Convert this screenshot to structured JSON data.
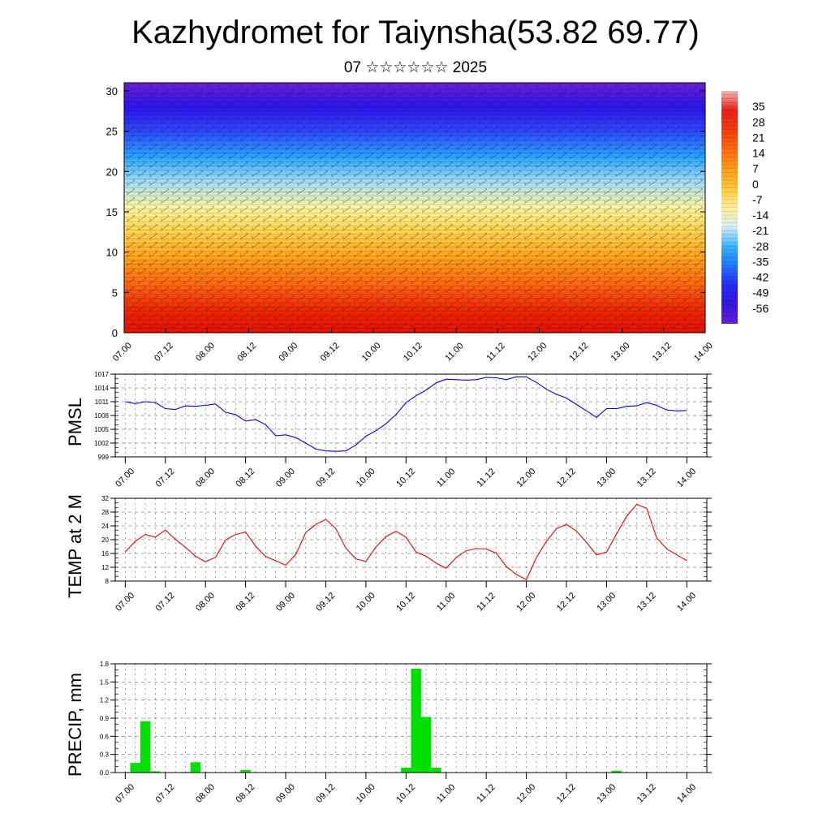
{
  "title": "Kazhydromet for Taiynsha(53.82 69.77)",
  "subtitle": "07 ☆☆☆☆☆☆ 2025",
  "x_tick_labels": [
    "07.00",
    "07.12",
    "08.00",
    "08.12",
    "09.00",
    "09.12",
    "10.00",
    "10.12",
    "11.00",
    "11.12",
    "12.00",
    "12.12",
    "13.00",
    "13.12",
    "14.00"
  ],
  "colors": {
    "pmsl_line": "#0000ee",
    "temp_line": "#ee0000",
    "precip_bar": "#00e000"
  },
  "chart_data": [
    {
      "type": "heatmap",
      "title": "",
      "ylabel": "",
      "xlabel": "",
      "x_range": [
        0,
        7
      ],
      "ylim": [
        0,
        31
      ],
      "y_ticks": [
        0,
        5,
        10,
        15,
        20,
        25,
        30
      ],
      "colorbar_labels": [
        "35",
        "28",
        "21",
        "14",
        "7",
        "0",
        "-7",
        "-14",
        "-21",
        "-28",
        "-35",
        "-42",
        "-49",
        "-56"
      ],
      "colorbar_range": [
        -63,
        42
      ],
      "overlay": "wind barbs",
      "colormap": [
        "#6a1fd8",
        "#2a14f0",
        "#2f4cff",
        "#2aa8ff",
        "#a8dff5",
        "#fff6a0",
        "#ffd24a",
        "#ffa21c",
        "#ff6a10",
        "#f02a08",
        "#e81000"
      ]
    },
    {
      "type": "line",
      "ylabel": "PMSL",
      "ylim": [
        999,
        1017
      ],
      "y_ticks": [
        "999",
        "1002",
        "1005",
        "1008",
        "1011",
        "1014",
        "1017"
      ],
      "x": [
        0.0,
        0.125,
        0.25,
        0.375,
        0.5,
        0.625,
        0.75,
        0.875,
        1.0,
        1.125,
        1.25,
        1.375,
        1.5,
        1.625,
        1.75,
        1.875,
        2.0,
        2.125,
        2.25,
        2.375,
        2.5,
        2.625,
        2.75,
        2.875,
        3.0,
        3.125,
        3.25,
        3.375,
        3.5,
        3.625,
        3.75,
        3.875,
        4.0,
        4.125,
        4.25,
        4.375,
        4.5,
        4.625,
        4.75,
        4.875,
        5.0,
        5.125,
        5.25,
        5.375,
        5.5,
        5.625,
        5.75,
        5.875,
        6.0,
        6.125,
        6.25,
        6.375,
        6.5,
        6.625,
        6.75,
        6.875,
        7.0
      ],
      "series": [
        {
          "values": [
            1011,
            1010.6,
            1011,
            1010.8,
            1009.5,
            1009.3,
            1010.1,
            1010,
            1010.2,
            1010.5,
            1008.7,
            1008.2,
            1006.8,
            1007.1,
            1006,
            1003.6,
            1003.8,
            1003.2,
            1002,
            1000.7,
            1000.3,
            1000.2,
            1000.3,
            1001.6,
            1003.5,
            1004.7,
            1006.2,
            1008.2,
            1010.8,
            1012.3,
            1013.5,
            1015.1,
            1015.9,
            1015.8,
            1015.7,
            1015.8,
            1016.3,
            1016.2,
            1015.8,
            1016.4,
            1016.4,
            1015.2,
            1013.7,
            1012.6,
            1011.8,
            1010.4,
            1009,
            1007.6,
            1009.5,
            1009.5,
            1010,
            1010.1,
            1010.8,
            1010.2,
            1009.2,
            1009,
            1009.1
          ]
        }
      ]
    },
    {
      "type": "line",
      "ylabel": "TEMP at 2 M",
      "ylim": [
        8,
        32
      ],
      "y_ticks": [
        "8",
        "12",
        "16",
        "20",
        "24",
        "28",
        "32"
      ],
      "x": [
        0.0,
        0.125,
        0.25,
        0.375,
        0.5,
        0.625,
        0.75,
        0.875,
        1.0,
        1.125,
        1.25,
        1.375,
        1.5,
        1.625,
        1.75,
        1.875,
        2.0,
        2.125,
        2.25,
        2.375,
        2.5,
        2.625,
        2.75,
        2.875,
        3.0,
        3.125,
        3.25,
        3.375,
        3.5,
        3.625,
        3.75,
        3.875,
        4.0,
        4.125,
        4.25,
        4.375,
        4.5,
        4.625,
        4.75,
        4.875,
        5.0,
        5.125,
        5.25,
        5.375,
        5.5,
        5.625,
        5.75,
        5.875,
        6.0,
        6.125,
        6.25,
        6.375,
        6.5,
        6.625,
        6.75,
        6.875,
        7.0
      ],
      "series": [
        {
          "values": [
            16.5,
            19.5,
            21.5,
            20.7,
            22.8,
            20.1,
            17.8,
            15.2,
            13.6,
            14.9,
            19.9,
            21.5,
            22.2,
            18.1,
            15.1,
            13.9,
            12.6,
            15.7,
            22.1,
            24.4,
            25.9,
            23.2,
            17.5,
            14.4,
            13.7,
            17.9,
            20.9,
            22.4,
            20.7,
            16.4,
            15.2,
            13.2,
            11.7,
            14.8,
            16.8,
            17.4,
            17.3,
            16.1,
            12.2,
            9.9,
            8.4,
            14.8,
            19.5,
            23.2,
            24.4,
            22.5,
            19.2,
            15.6,
            16.4,
            21.7,
            26.8,
            30.2,
            29.1,
            20.5,
            17.3,
            15.6,
            13.9
          ]
        }
      ]
    },
    {
      "type": "bar",
      "ylabel": "PRECIP, mm",
      "ylim": [
        0,
        1.8
      ],
      "y_ticks": [
        "0.0",
        "0.3",
        "0.6",
        "0.9",
        "1.2",
        "1.5",
        "1.8"
      ],
      "x": [
        0.125,
        0.25,
        0.375,
        0.75,
        0.875,
        1.5,
        3.5,
        3.625,
        3.75,
        3.875,
        6.125
      ],
      "values": [
        0.16,
        0.85,
        0.02,
        0.01,
        0.17,
        0.04,
        0.08,
        1.72,
        0.92,
        0.08,
        0.03
      ]
    }
  ]
}
